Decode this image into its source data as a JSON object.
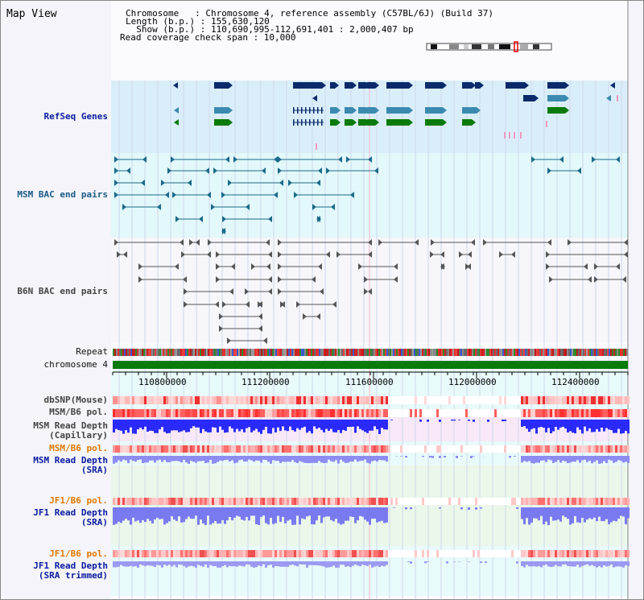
{
  "view_title": "Map View",
  "header": {
    "chromosome_line": "Chromosome   : Chromosome 4, reference assembly (C57BL/6J) (Build 37)",
    "length_line": "Length (b.p.) : 155,630,120",
    "show_line": "  Show (b.p.) : 110,690,995-112,691,401 : 2,000,407 bp",
    "span_line": "Read coverage check span : 10,000"
  },
  "tracks": {
    "refseq": "RefSeq Genes",
    "msm_bac": "MSM BAC end pairs",
    "b6n_bac": "B6N BAC end pairs",
    "repeat": "Repeat",
    "chromosome": "chromosome 4",
    "dbsnp": "dbSNP(Mouse)",
    "msm_pol1": "MSM/B6 pol.",
    "msm_depth_cap_1": "MSM Read Depth",
    "msm_depth_cap_2": "(Capillary)",
    "msm_pol2": "MSM/B6 pol.",
    "msm_depth_sra_1": "MSM Read Depth",
    "msm_depth_sra_2": "(SRA)",
    "jf1_pol1": "JF1/B6 pol.",
    "jf1_depth_1": "JF1 Read Depth",
    "jf1_depth_2": "(SRA)",
    "jf1_pol2": "JF1/B6 pol.",
    "jf1_trim_1": "JF1 Read Depth",
    "jf1_trim_2": "(SRA trimmed)"
  },
  "axis_ticks": [
    "110800000",
    "111200000",
    "111600000",
    "112000000",
    "112400000"
  ],
  "colors": {
    "refseq_bg": "#daeefa",
    "msm_bac_bg": "#e2f8fa",
    "gene_navy": "#0a2a6a",
    "gene_teal": "#3a8ab0",
    "gene_green": "#0a7a0a",
    "depth_blue": "#4a4aff",
    "pol_red": "#ff2a2a",
    "chrom_green": "#0a7a0a"
  }
}
